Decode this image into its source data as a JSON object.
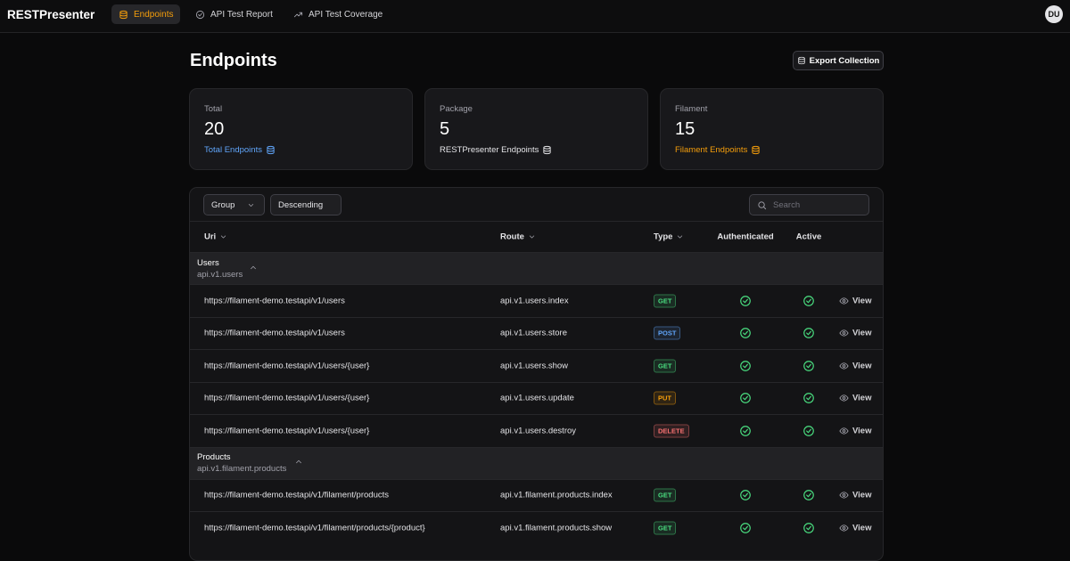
{
  "nav": {
    "brand": "RESTPresenter",
    "items": [
      "Endpoints",
      "API Test Report",
      "API Test Coverage"
    ],
    "avatar": "DU"
  },
  "header": {
    "title": "Endpoints",
    "action": "Export Collection"
  },
  "stats": [
    {
      "label": "Total",
      "value": 20,
      "description": "Total Endpoints",
      "color": "#60a5fa"
    },
    {
      "label": "Package",
      "value": 5,
      "description": "RESTPresenter Endpoints",
      "color": "#e4e4e7"
    },
    {
      "label": "Filament",
      "value": 15,
      "description": "Filament Endpoints",
      "color": "#f59e0b"
    }
  ],
  "filters": {
    "group": "Group",
    "order": "Descending",
    "search": "Search"
  },
  "table": {
    "columns": [
      "Uri",
      "Route",
      "Type",
      "Authenticated",
      "Active"
    ],
    "action": "View",
    "groups": [
      {
        "name": "Users",
        "key": "api.v1.users",
        "rows": [
          {
            "uri": "https://filament-demo.testapi/v1/users",
            "route": "api.v1.users.index",
            "type": "GET",
            "color": "#4ade80"
          },
          {
            "uri": "https://filament-demo.testapi/v1/users",
            "route": "api.v1.users.store",
            "type": "POST",
            "color": "#60a5fa"
          },
          {
            "uri": "https://filament-demo.testapi/v1/users/{user}",
            "route": "api.v1.users.show",
            "type": "GET",
            "color": "#4ade80"
          },
          {
            "uri": "https://filament-demo.testapi/v1/users/{user}",
            "route": "api.v1.users.update",
            "type": "PUT",
            "color": "#f59e0b"
          },
          {
            "uri": "https://filament-demo.testapi/v1/users/{user}",
            "route": "api.v1.users.destroy",
            "type": "DELETE",
            "color": "#f87171"
          }
        ]
      },
      {
        "name": "Products",
        "key": "api.v1.filament.products",
        "rows": [
          {
            "uri": "https://filament-demo.testapi/v1/filament/products",
            "route": "api.v1.filament.products.index",
            "type": "GET",
            "color": "#4ade80"
          },
          {
            "uri": "https://filament-demo.testapi/v1/filament/products/{product}",
            "route": "api.v1.filament.products.show",
            "type": "GET",
            "color": "#4ade80"
          }
        ]
      }
    ]
  }
}
